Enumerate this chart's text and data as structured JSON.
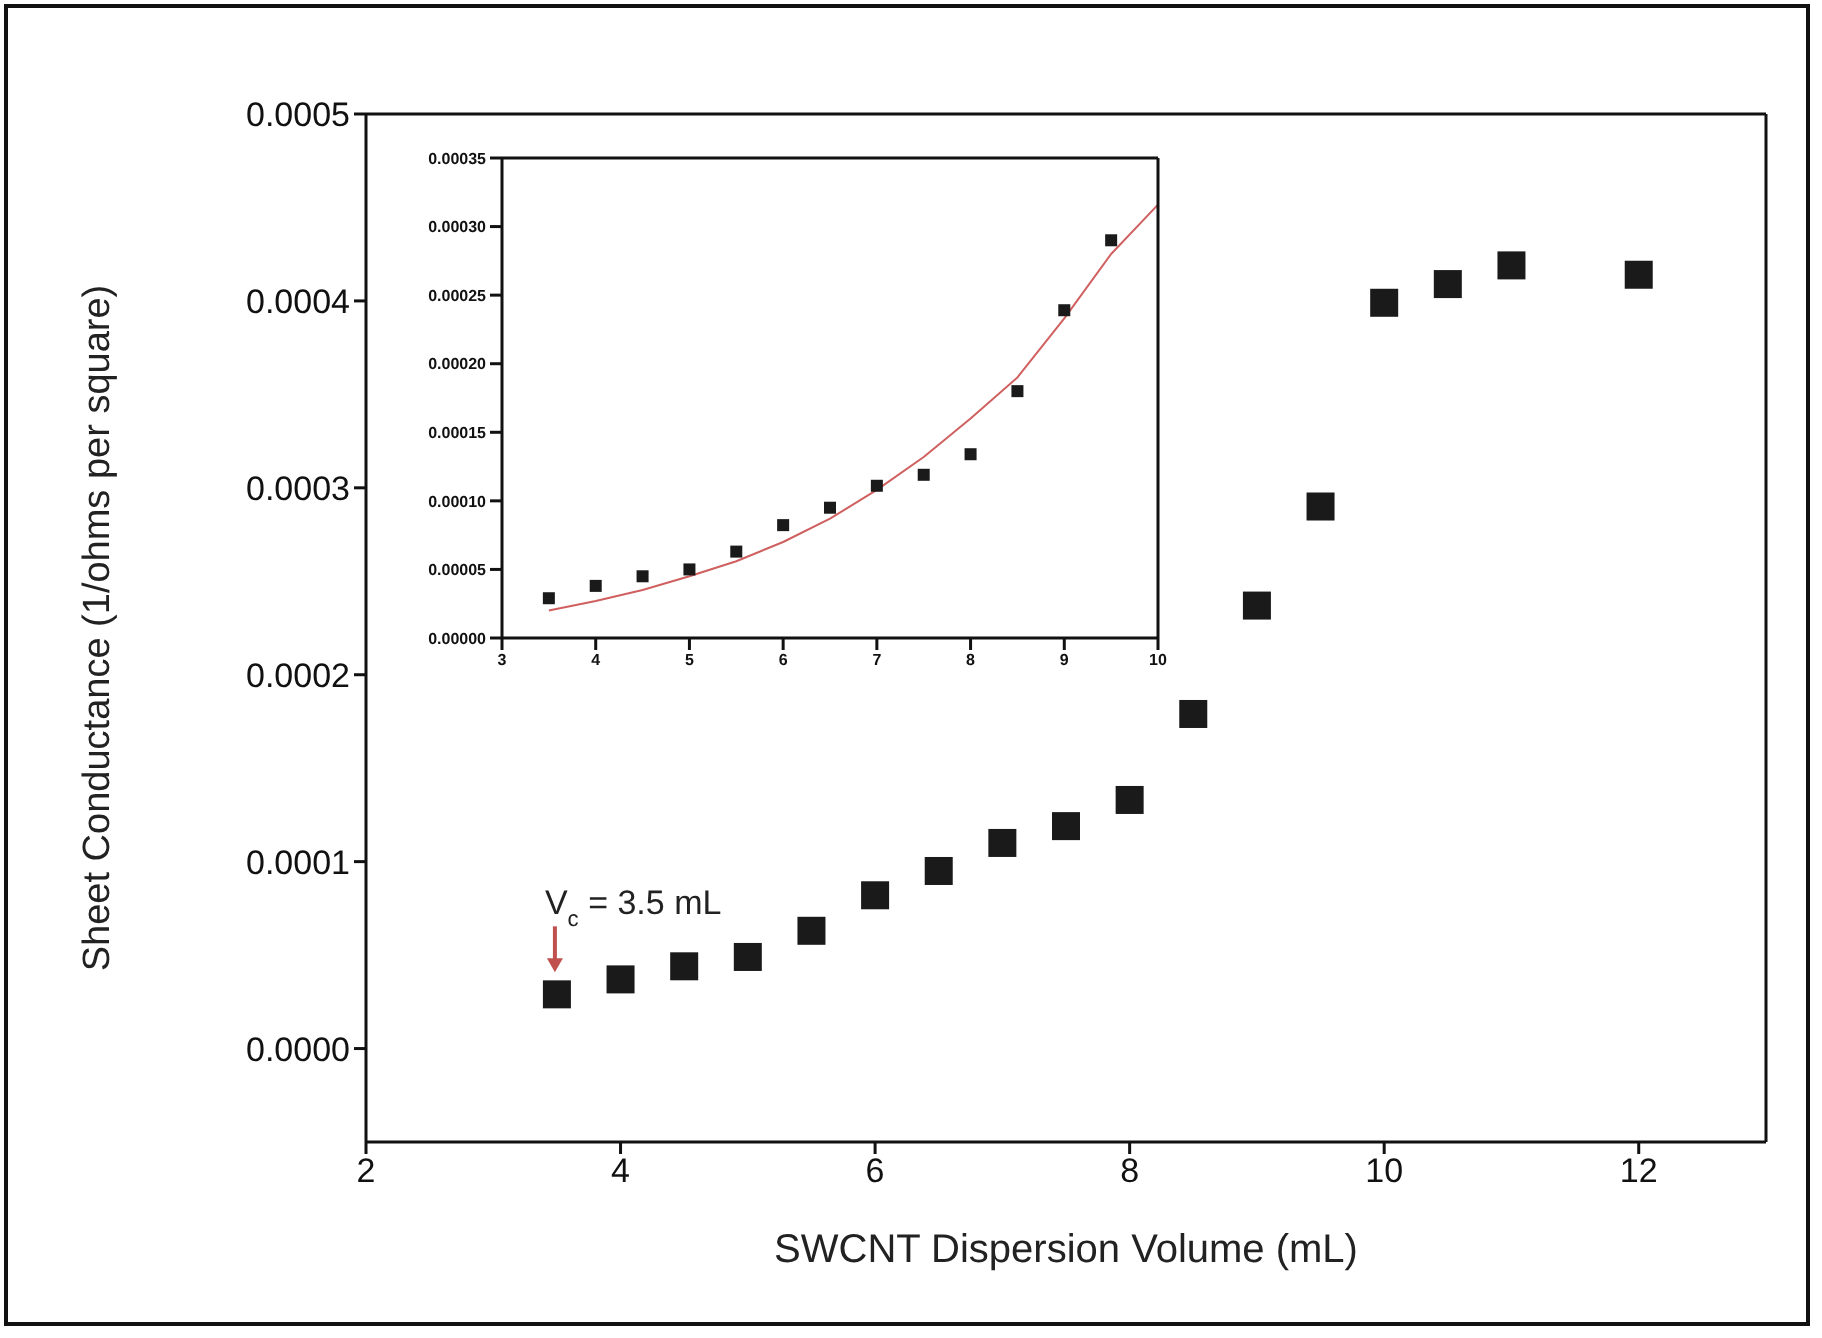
{
  "chart_data": [
    {
      "type": "scatter",
      "xlabel": "SWCNT Dispersion Volume (mL)",
      "ylabel": "Sheet Conductance (1/ohms per square)",
      "marker": "square",
      "xlim": [
        2,
        13
      ],
      "xticks": [
        2,
        4,
        6,
        8,
        10,
        12
      ],
      "ylim": [
        -5e-05,
        0.0005
      ],
      "yticks": [
        {
          "value": 0,
          "label": "0.0000"
        },
        {
          "value": 0.0001,
          "label": "0.0001"
        },
        {
          "value": 0.0002,
          "label": "0.0002"
        },
        {
          "value": 0.0003,
          "label": "0.0003"
        },
        {
          "value": 0.0004,
          "label": "0.0004"
        },
        {
          "value": 0.0005,
          "label": "0.0005"
        }
      ],
      "x": [
        3.5,
        4,
        4.5,
        5,
        5.5,
        6,
        6.5,
        7,
        7.5,
        8,
        8.5,
        9,
        9.5,
        10,
        10.5,
        11,
        12
      ],
      "series": [
        {
          "color": "#1a1a1a",
          "values": [
            2.9e-05,
            3.7e-05,
            4.4e-05,
            4.9e-05,
            6.3e-05,
            8.2e-05,
            9.5e-05,
            0.00011,
            0.000119,
            0.000133,
            0.000179,
            0.000237,
            0.00029,
            0.000399,
            0.000409,
            0.000419,
            0.000414
          ]
        }
      ],
      "annotations": [
        {
          "text": "V$_{c}$ = 3.5 mL",
          "x": 3.5,
          "y": 2.9e-05
        }
      ]
    },
    {
      "type": "scatter",
      "marker": "square",
      "xlim": [
        3,
        10
      ],
      "xticks": [
        3,
        4,
        5,
        6,
        7,
        8,
        9,
        10
      ],
      "ylim": [
        0,
        0.00035
      ],
      "yticks": [
        {
          "value": 0,
          "label": "0.00000"
        },
        {
          "value": 5e-05,
          "label": "0.00005"
        },
        {
          "value": 0.0001,
          "label": "0.00010"
        },
        {
          "value": 0.00015,
          "label": "0.00015"
        },
        {
          "value": 0.0002,
          "label": "0.00020"
        },
        {
          "value": 0.00025,
          "label": "0.00025"
        },
        {
          "value": 0.0003,
          "label": "0.00030"
        },
        {
          "value": 0.00035,
          "label": "0.00035"
        }
      ],
      "x": [
        3.5,
        4,
        4.5,
        5,
        5.5,
        6,
        6.5,
        7,
        7.5,
        8,
        8.5,
        9,
        9.5
      ],
      "series": [
        {
          "color": "#1a1a1a",
          "values": [
            2.9e-05,
            3.8e-05,
            4.5e-05,
            5e-05,
            6.3e-05,
            8.23e-05,
            9.5e-05,
            0.000111,
            0.000119,
            0.000134,
            0.00018,
            0.000239,
            0.00029
          ]
        },
        {
          "type": "line",
          "color": "#d06060",
          "line_style": "solid",
          "marker": "none",
          "x": [
            3.5,
            4,
            4.5,
            5,
            5.5,
            6,
            6.5,
            7,
            7.5,
            8,
            8.5,
            9,
            9.5,
            10
          ],
          "values": [
            2e-05,
            2.7e-05,
            3.5e-05,
            4.5e-05,
            5.6e-05,
            7e-05,
            8.7e-05,
            0.000108,
            0.000132,
            0.00016,
            0.00019,
            0.000233,
            0.00028,
            0.000316
          ]
        }
      ]
    }
  ]
}
